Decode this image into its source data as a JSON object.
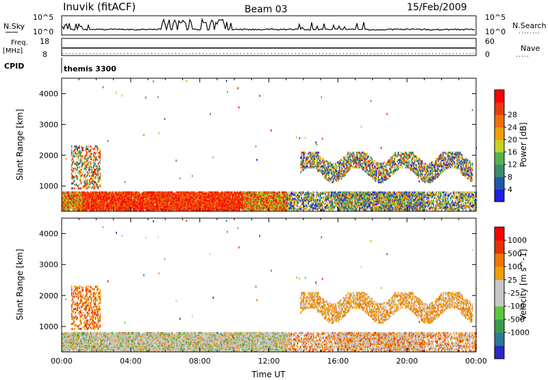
{
  "header": {
    "station": "Inuvik (fitACF)",
    "beam": "Beam 03",
    "date": "15/Feb/2009"
  },
  "panels": {
    "noise": {
      "left_label": "N.Sky",
      "right_label": "N.Search",
      "left_ticks": [
        "10^5",
        "10^0"
      ],
      "right_ticks": [
        "10^5",
        "10^0"
      ]
    },
    "freq": {
      "left_label_1": "Freq.",
      "left_label_2": "[MHz]",
      "right_label": "Nave",
      "left_ticks": [
        "18",
        "8"
      ],
      "right_ticks": [
        "60",
        "0"
      ]
    },
    "cpid": {
      "label": "CPID",
      "value": "themis 3300"
    }
  },
  "chart_data": [
    {
      "type": "heatmap",
      "name": "power",
      "xlabel": "",
      "ylabel": "Slant Range [km]",
      "xlim": [
        0,
        24
      ],
      "ylim": [
        180,
        4500
      ],
      "yticks": [
        1000,
        2000,
        3000,
        4000
      ],
      "colorbar_label": "Power [dB]",
      "colorbar_ticks": [
        "4",
        "8",
        "12",
        "16",
        "20",
        "24",
        "28"
      ],
      "colorbar_colors": [
        "#1e1ee6",
        "#1e5aaa",
        "#3c8c6e",
        "#50b450",
        "#c8d21e",
        "#f0a00a",
        "#f06e0a",
        "#e63c0a",
        "#ff0000"
      ]
    },
    {
      "type": "heatmap",
      "name": "velocity",
      "xlabel": "Time UT",
      "ylabel": "Slant Range [km]",
      "xlim": [
        0,
        24
      ],
      "ylim": [
        180,
        4500
      ],
      "yticks": [
        1000,
        2000,
        3000,
        4000
      ],
      "xticks": [
        "00:00",
        "04:00",
        "08:00",
        "12:00",
        "16:00",
        "20:00",
        "00:00"
      ],
      "colorbar_label": "Velocity [m s^-1]",
      "colorbar_ticks": [
        "1000",
        "500",
        "100",
        "25",
        "-25",
        "-100",
        "-500",
        "-1000"
      ],
      "colorbar_colors": [
        "#2828c8",
        "#2a7a9a",
        "#3a9a4a",
        "#5ac83c",
        "#c8c8c8",
        "#c8c8c8",
        "#f0a000",
        "#f07800",
        "#e63200",
        "#ff0000"
      ]
    }
  ]
}
